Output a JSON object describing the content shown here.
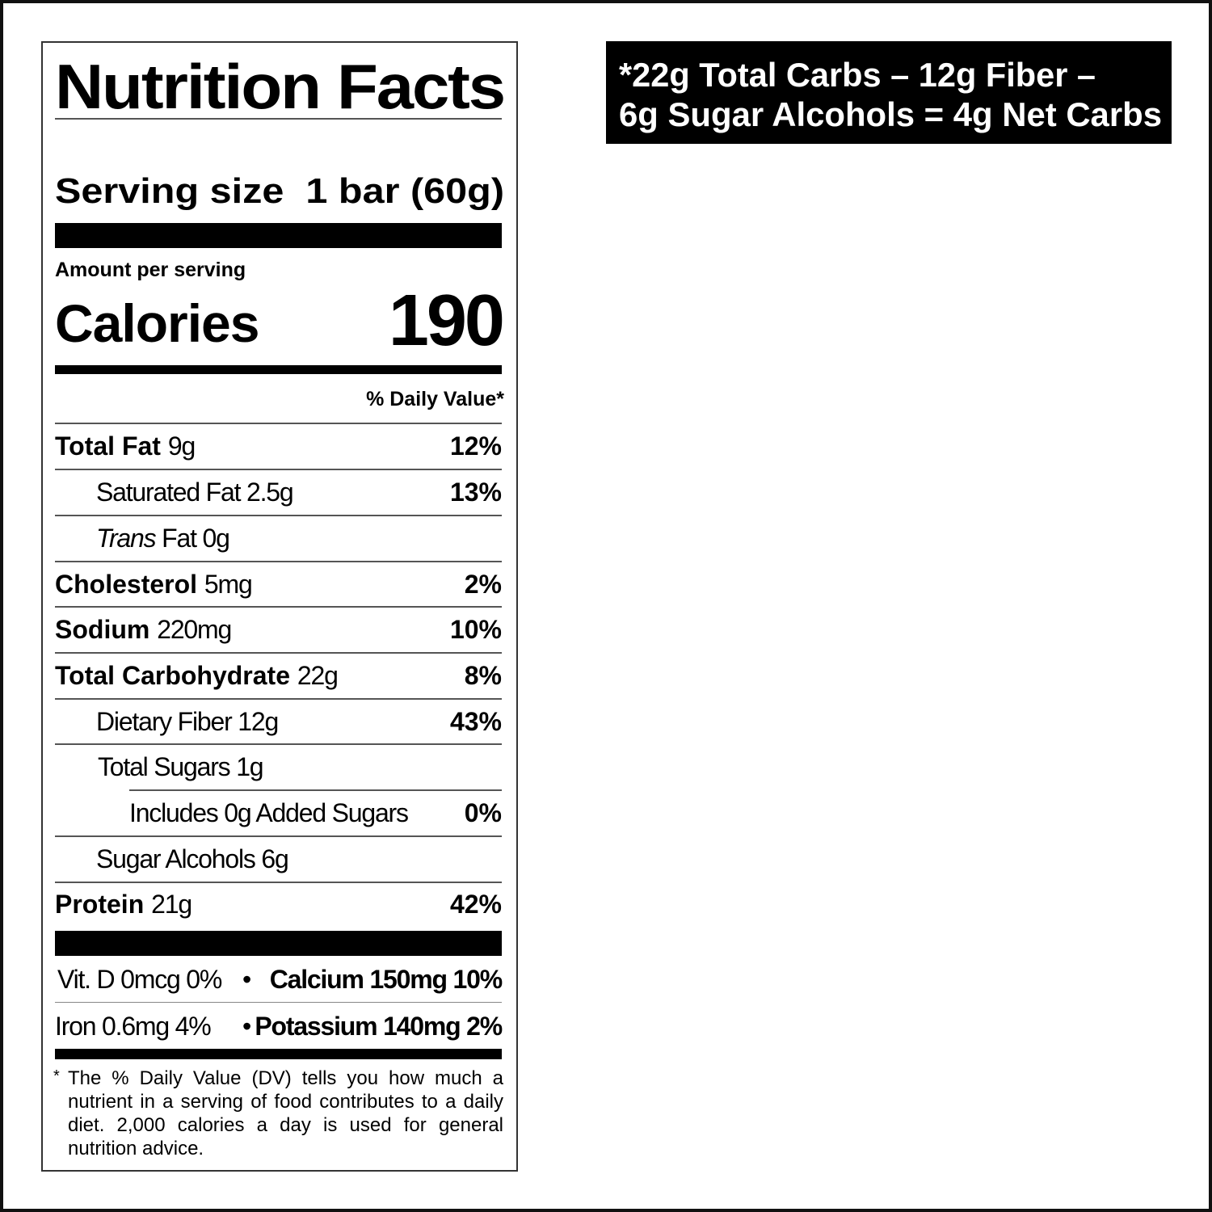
{
  "net_carbs": {
    "line1": "*22g Total Carbs – 12g Fiber –",
    "line2": "6g Sugar Alcohols = 4g Net Carbs"
  },
  "label": {
    "title": "Nutrition Facts",
    "serving_label": "Serving size",
    "serving_value": "1 bar (60g)",
    "amount_per_serving": "Amount per serving",
    "calories_label": "Calories",
    "calories_value": "190",
    "dv_header": "% Daily Value*",
    "nutrients": [
      {
        "name": "Total Fat",
        "amount": "9g",
        "dv": "12%"
      },
      {
        "name": "Saturated Fat",
        "amount": "2.5g",
        "dv": "13%"
      },
      {
        "name_italic": "Trans",
        "name": "Fat",
        "amount": "0g",
        "dv": ""
      },
      {
        "name": "Cholesterol",
        "amount": "5mg",
        "dv": "2%"
      },
      {
        "name": "Sodium",
        "amount": "220mg",
        "dv": "10%"
      },
      {
        "name": "Total Carbohydrate",
        "amount": "22g",
        "dv": "8%"
      },
      {
        "name": "Dietary Fiber",
        "amount": "12g",
        "dv": "43%"
      },
      {
        "name": "Total Sugars",
        "amount": "1g",
        "dv": ""
      },
      {
        "name": "Includes 0g Added Sugars",
        "amount": "",
        "dv": "0%"
      },
      {
        "name": "Sugar Alcohols",
        "amount": "6g",
        "dv": ""
      },
      {
        "name": "Protein",
        "amount": "21g",
        "dv": "42%"
      }
    ],
    "vitamins": {
      "vit_d": "Vit. D 0mcg 0%",
      "calcium": "Calcium 150mg 10%",
      "iron": "Iron 0.6mg 4%",
      "potassium": "Potassium 140mg 2%",
      "separator": "•"
    },
    "footnote_star": "*",
    "footnote": "The % Daily Value (DV) tells you how much a nutrient in a serving of food contributes to a daily diet. 2,000 calories a day is used for general nutrition advice."
  }
}
